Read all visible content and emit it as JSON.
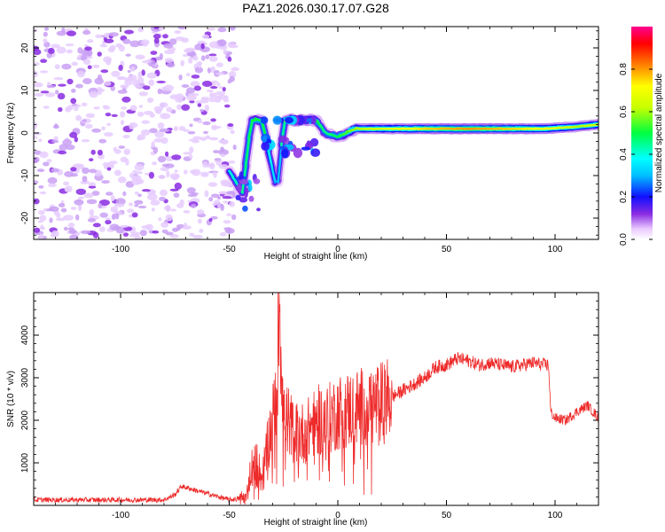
{
  "title": "PAZ1.2026.030.17.07.G28",
  "chart_data": [
    {
      "type": "heatmap",
      "name": "spectrogram",
      "xlabel": "Height of straight line (km)",
      "ylabel": "Frequency (Hz)",
      "xlim": [
        -140,
        120
      ],
      "ylim": [
        -25,
        25
      ],
      "x_ticks": [
        -100,
        -50,
        0,
        50,
        100
      ],
      "y_ticks": [
        -20,
        -10,
        0,
        10,
        20
      ],
      "colorbar": {
        "label": "Normalized spectral amplitude",
        "range": [
          0.0,
          1.0
        ],
        "ticks": [
          0.0,
          0.2,
          0.4,
          0.6,
          0.8
        ]
      },
      "noise_region_x": [
        -140,
        -47
      ],
      "ridge": [
        {
          "x": -50,
          "f": -9,
          "amp": 0.4
        },
        {
          "x": -44,
          "f": -14,
          "amp": 0.45
        },
        {
          "x": -40,
          "f": 3,
          "amp": 0.5
        },
        {
          "x": -28,
          "f": -14,
          "amp": 0.25
        },
        {
          "x": -35,
          "f": 3,
          "amp": 0.5
        },
        {
          "x": -25,
          "f": 3,
          "amp": 0.55
        },
        {
          "x": -18,
          "f": 3,
          "amp": 0.75
        },
        {
          "x": -10,
          "f": 3,
          "amp": 0.5
        },
        {
          "x": -6,
          "f": 0,
          "amp": 0.45
        },
        {
          "x": 0,
          "f": -1,
          "amp": 0.5
        },
        {
          "x": 8,
          "f": 1,
          "amp": 0.6
        },
        {
          "x": 20,
          "f": 1,
          "amp": 0.65
        },
        {
          "x": 40,
          "f": 1,
          "amp": 0.75
        },
        {
          "x": 60,
          "f": 1,
          "amp": 0.8
        },
        {
          "x": 80,
          "f": 1,
          "amp": 0.75
        },
        {
          "x": 95,
          "f": 1,
          "amp": 0.7
        },
        {
          "x": 110,
          "f": 1.5,
          "amp": 0.6
        },
        {
          "x": 120,
          "f": 2,
          "amp": 0.65
        }
      ]
    },
    {
      "type": "line",
      "name": "snr",
      "xlabel": "Height of straight line (km)",
      "ylabel": "SNR (10 * v/v)",
      "xlim": [
        -140,
        120
      ],
      "ylim": [
        0,
        5000
      ],
      "x_ticks": [
        -100,
        -50,
        0,
        50,
        100
      ],
      "y_ticks": [
        1000,
        2000,
        3000,
        4000
      ],
      "series": [
        {
          "name": "SNR",
          "color": "#ee2a2a",
          "x": [
            -140,
            -80,
            -75,
            -72,
            -50,
            -42,
            -40,
            -37,
            -35,
            -32,
            -30,
            -28,
            -27,
            -25,
            -20,
            -15,
            -10,
            -5,
            0,
            10,
            20,
            30,
            40,
            45,
            50,
            55,
            60,
            65,
            70,
            75,
            80,
            85,
            90,
            95,
            97,
            98,
            100,
            105,
            110,
            115,
            120
          ],
          "y": [
            130,
            130,
            250,
            450,
            130,
            180,
            900,
            1000,
            600,
            1500,
            2000,
            2700,
            5000,
            2200,
            1700,
            1700,
            2000,
            2000,
            2200,
            2300,
            2400,
            2700,
            3000,
            3250,
            3300,
            3450,
            3400,
            3300,
            3350,
            3300,
            3250,
            3300,
            3350,
            3300,
            3300,
            2200,
            2050,
            2000,
            2200,
            2350,
            2050
          ]
        }
      ]
    }
  ]
}
